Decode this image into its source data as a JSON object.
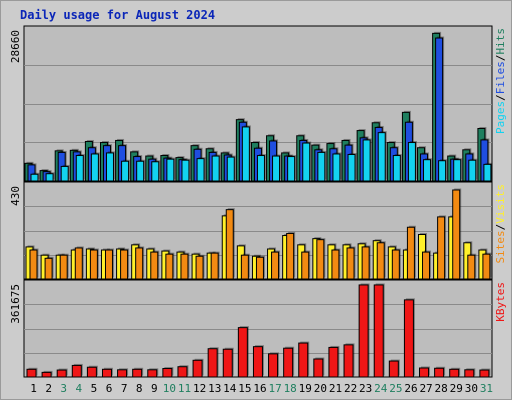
{
  "title": "Daily usage for August 2024",
  "colors": {
    "hits": "#1f7f5f",
    "files": "#1f4ee0",
    "pages": "#13d2f0",
    "visits": "#f28a12",
    "sites": "#fff02a",
    "kbytes": "#ef1616",
    "weekend_day": "#1f7f5f",
    "weekday": "#000000"
  },
  "chart_data": [
    {
      "type": "bar",
      "title": "Daily usage for August 2024",
      "panel": "top",
      "ymax": 28660,
      "tick_label": "28660",
      "right_label": [
        "Pages",
        "Files",
        "Hits"
      ],
      "categories": [
        "1",
        "2",
        "3",
        "4",
        "5",
        "6",
        "7",
        "8",
        "9",
        "10",
        "11",
        "12",
        "13",
        "14",
        "15",
        "16",
        "17",
        "18",
        "19",
        "20",
        "21",
        "22",
        "23",
        "24",
        "25",
        "26",
        "27",
        "28",
        "29",
        "30",
        "31"
      ],
      "series": [
        {
          "name": "Hits",
          "values": [
            3400,
            2000,
            5800,
            5900,
            7600,
            7400,
            7800,
            5600,
            4800,
            4900,
            4500,
            6800,
            6200,
            5400,
            11800,
            7400,
            8700,
            5400,
            8700,
            6900,
            7200,
            7800,
            9700,
            11200,
            7400,
            13200,
            6400,
            28400,
            4800,
            6000,
            10100
          ]
        },
        {
          "name": "Files",
          "values": [
            3100,
            1800,
            5500,
            5600,
            6400,
            6800,
            6800,
            4700,
            4200,
            4400,
            4100,
            6100,
            5500,
            5000,
            11300,
            6300,
            7700,
            4800,
            7800,
            6000,
            6200,
            6900,
            8300,
            10300,
            6400,
            11300,
            5200,
            27500,
            4200,
            5200,
            7900
          ]
        },
        {
          "name": "Pages",
          "values": [
            1300,
            1400,
            2800,
            4900,
            5200,
            5400,
            3800,
            3800,
            3700,
            4200,
            4000,
            4300,
            4800,
            4600,
            10400,
            4900,
            4800,
            4700,
            7300,
            5500,
            5200,
            5100,
            7900,
            9300,
            4900,
            7400,
            4100,
            3900,
            4100,
            4000,
            3200
          ]
        }
      ]
    },
    {
      "type": "bar",
      "panel": "middle",
      "ymax": 430,
      "tick_label": "430",
      "right_label": [
        "Sites",
        "Visits"
      ],
      "categories": [
        "1",
        "2",
        "3",
        "4",
        "5",
        "6",
        "7",
        "8",
        "9",
        "10",
        "11",
        "12",
        "13",
        "14",
        "15",
        "16",
        "17",
        "18",
        "19",
        "20",
        "21",
        "22",
        "23",
        "24",
        "25",
        "26",
        "27",
        "28",
        "29",
        "30",
        "31"
      ],
      "series": [
        {
          "name": "Sites",
          "values": [
            155,
            115,
            115,
            140,
            145,
            140,
            145,
            165,
            145,
            135,
            130,
            120,
            125,
            305,
            160,
            110,
            145,
            210,
            165,
            195,
            165,
            165,
            170,
            185,
            155,
            140,
            215,
            125,
            300,
            175,
            140
          ]
        },
        {
          "name": "Visits",
          "values": [
            140,
            100,
            115,
            150,
            140,
            140,
            140,
            150,
            130,
            120,
            120,
            110,
            125,
            335,
            115,
            105,
            130,
            220,
            130,
            190,
            140,
            150,
            155,
            175,
            140,
            250,
            130,
            300,
            430,
            115,
            120
          ]
        }
      ]
    },
    {
      "type": "bar",
      "panel": "bottom",
      "ymax": 361675,
      "tick_label": "361675",
      "right_label": [
        "KBytes"
      ],
      "categories": [
        "1",
        "2",
        "3",
        "4",
        "5",
        "6",
        "7",
        "8",
        "9",
        "10",
        "11",
        "12",
        "13",
        "14",
        "15",
        "16",
        "17",
        "18",
        "19",
        "20",
        "21",
        "22",
        "23",
        "24",
        "25",
        "26",
        "27",
        "28",
        "29",
        "30",
        "31"
      ],
      "series": [
        {
          "name": "KBytes",
          "values": [
            30000,
            18000,
            27000,
            45000,
            38000,
            30000,
            28000,
            30000,
            28000,
            33000,
            40000,
            65000,
            110000,
            108000,
            192000,
            118000,
            90000,
            112000,
            132000,
            70000,
            115000,
            125000,
            358000,
            358000,
            62000,
            300000,
            35000,
            34000,
            30000,
            28000,
            27000
          ]
        }
      ]
    }
  ],
  "weekend_days": [
    3,
    4,
    10,
    11,
    17,
    18,
    24,
    25,
    31
  ]
}
